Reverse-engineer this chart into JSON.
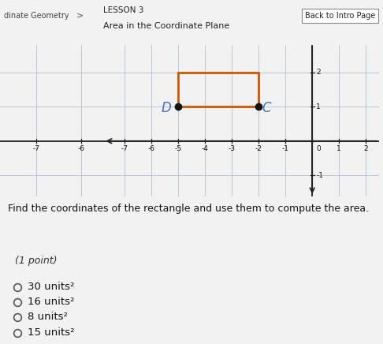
{
  "title_lesson": "LESSON 3",
  "title_topic": "Area in the Coordinate Plane",
  "breadcrumb": "dinate Geometry",
  "back_button": "Back to Intro Page",
  "header_bg": "#4db8d4",
  "grid_bg": "#dde8f0",
  "rectangle_color": "#cc5500",
  "rectangle_x1": -5,
  "rectangle_y1": 1,
  "rectangle_x2": -2,
  "rectangle_y2": 2,
  "point_D": [
    -5,
    1
  ],
  "point_C": [
    -2,
    1
  ],
  "label_D": "D",
  "label_C": "C",
  "x_range": [
    -7.8,
    2.5
  ],
  "y_range": [
    -1.6,
    2.8
  ],
  "x_ticks": [
    -7,
    -6,
    -5,
    -4,
    -3,
    -2,
    -1,
    0,
    1,
    2
  ],
  "y_ticks": [
    -1,
    0,
    1,
    2
  ],
  "question_text": "Find the coordinates of the rectangle and use them to compute the area.",
  "point_label": "(1 point)",
  "choices": [
    "30 units²",
    "16 units²",
    "8 units²",
    "15 units²"
  ],
  "label_color": "#4472c4",
  "axis_color": "#222222",
  "bg_color": "#f2f2f2",
  "white": "#ffffff",
  "point_color": "#111111",
  "grid_line_color": "#b8c8d8",
  "tick_label_color": "#111111"
}
